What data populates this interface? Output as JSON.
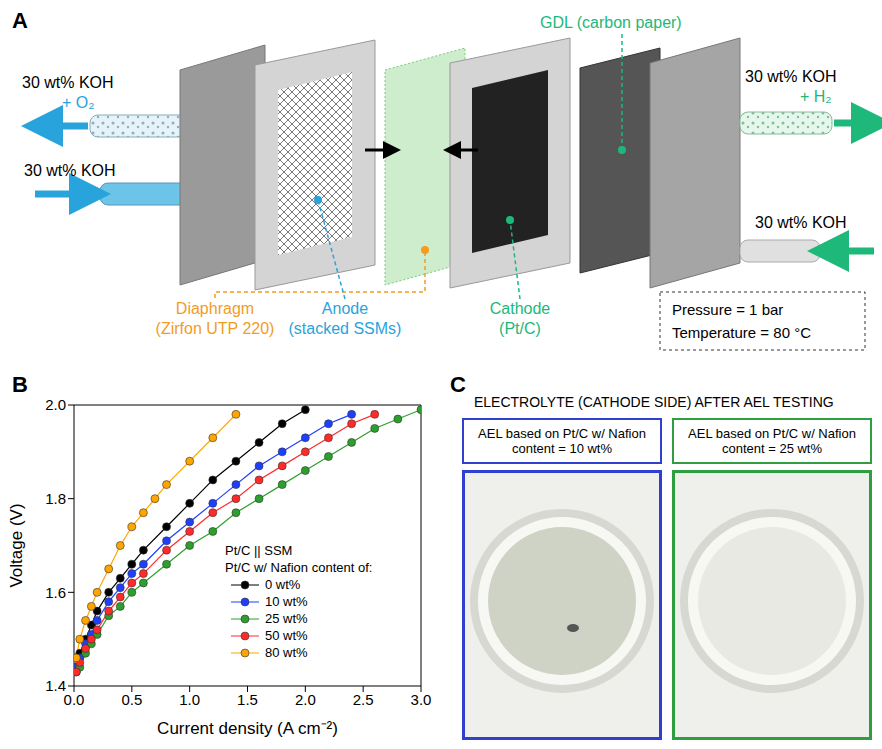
{
  "diagram": {
    "letter": "A",
    "gdl": "GDL (carbon paper)",
    "left_outlet": [
      "30 wt% KOH",
      "+ O₂"
    ],
    "left_inlet": "30 wt% KOH",
    "right_outlet": [
      "30 wt% KOH",
      "+ H₂"
    ],
    "right_inlet": "30 wt% KOH",
    "diaphragm": [
      "Diaphragm",
      "(Zirfon UTP 220)"
    ],
    "anode": [
      "Anode",
      "(stacked SSMs)"
    ],
    "cathode": [
      "Cathode",
      "(Pt/C)"
    ],
    "conditions": [
      "Pressure = 1 bar",
      "Temperature = 80 °C"
    ]
  },
  "chart_letter": "B",
  "chart_data": {
    "type": "line",
    "xlabel": "Current density (A cm⁻²)",
    "ylabel": "Voltage (V)",
    "legend_title": [
      "Pt/C || SSM",
      "Pt/C w/ Nafion content of:"
    ],
    "legend": "lower right",
    "marker": "circle",
    "grid": false,
    "xlim": [
      0,
      3
    ],
    "xticks": [
      {
        "value": 0,
        "label": "0.0"
      },
      {
        "value": 0.5,
        "label": "0.5"
      },
      {
        "value": 1,
        "label": "1.0"
      },
      {
        "value": 1.5,
        "label": "1.5"
      },
      {
        "value": 2,
        "label": "2.0"
      },
      {
        "value": 2.5,
        "label": "2.5"
      },
      {
        "value": 3,
        "label": "3.0"
      }
    ],
    "ylim": [
      1.4,
      2.0
    ],
    "yticks": [
      1.4,
      1.6,
      1.8,
      {
        "value": 2,
        "label": "2.0"
      }
    ],
    "series": [
      {
        "name": "0 wt%",
        "color": "#000000",
        "x": [
          0.02,
          0.05,
          0.1,
          0.15,
          0.2,
          0.3,
          0.4,
          0.5,
          0.6,
          0.8,
          1.0,
          1.2,
          1.4,
          1.6,
          1.8,
          2.0
        ],
        "values": [
          1.44,
          1.47,
          1.5,
          1.53,
          1.56,
          1.6,
          1.63,
          1.66,
          1.69,
          1.74,
          1.79,
          1.84,
          1.88,
          1.92,
          1.96,
          1.99
        ]
      },
      {
        "name": "10 wt%",
        "color": "#1f3fff",
        "x": [
          0.02,
          0.05,
          0.1,
          0.15,
          0.2,
          0.3,
          0.4,
          0.5,
          0.6,
          0.8,
          1.0,
          1.2,
          1.4,
          1.6,
          1.8,
          2.0,
          2.2,
          2.4
        ],
        "values": [
          1.44,
          1.46,
          1.49,
          1.51,
          1.54,
          1.58,
          1.61,
          1.64,
          1.66,
          1.71,
          1.75,
          1.79,
          1.83,
          1.87,
          1.9,
          1.93,
          1.96,
          1.98
        ]
      },
      {
        "name": "25 wt%",
        "color": "#2ca02c",
        "x": [
          0.02,
          0.05,
          0.1,
          0.15,
          0.2,
          0.3,
          0.4,
          0.5,
          0.6,
          0.8,
          1.0,
          1.2,
          1.4,
          1.6,
          1.8,
          2.0,
          2.2,
          2.4,
          2.6,
          2.8,
          3.0
        ],
        "values": [
          1.43,
          1.44,
          1.47,
          1.49,
          1.51,
          1.55,
          1.57,
          1.6,
          1.62,
          1.66,
          1.7,
          1.73,
          1.77,
          1.8,
          1.83,
          1.86,
          1.89,
          1.92,
          1.95,
          1.97,
          1.99
        ]
      },
      {
        "name": "50 wt%",
        "color": "#ff2a2a",
        "x": [
          0.02,
          0.05,
          0.1,
          0.15,
          0.2,
          0.3,
          0.4,
          0.5,
          0.6,
          0.8,
          1.0,
          1.2,
          1.4,
          1.6,
          1.8,
          2.0,
          2.2,
          2.4,
          2.6
        ],
        "values": [
          1.43,
          1.45,
          1.48,
          1.5,
          1.52,
          1.56,
          1.59,
          1.62,
          1.64,
          1.69,
          1.73,
          1.77,
          1.8,
          1.84,
          1.87,
          1.9,
          1.93,
          1.96,
          1.98
        ]
      },
      {
        "name": "80 wt%",
        "color": "#ffa500",
        "x": [
          0.02,
          0.05,
          0.1,
          0.15,
          0.2,
          0.3,
          0.4,
          0.5,
          0.6,
          0.7,
          0.8,
          1.0,
          1.2,
          1.4
        ],
        "values": [
          1.46,
          1.5,
          1.54,
          1.57,
          1.6,
          1.65,
          1.7,
          1.74,
          1.77,
          1.8,
          1.83,
          1.88,
          1.93,
          1.98
        ]
      }
    ]
  },
  "photos": {
    "letter": "C",
    "title": "ELECTROLYTE (CATHODE SIDE) AFTER AEL TESTING",
    "items": [
      {
        "label": "AEL based on Pt/C w/ Nafion content = 10 wt%",
        "color": "#2f3fd0"
      },
      {
        "label": "AEL based on Pt/C w/ Nafion content = 25 wt%",
        "color": "#2e9e3e"
      }
    ]
  }
}
